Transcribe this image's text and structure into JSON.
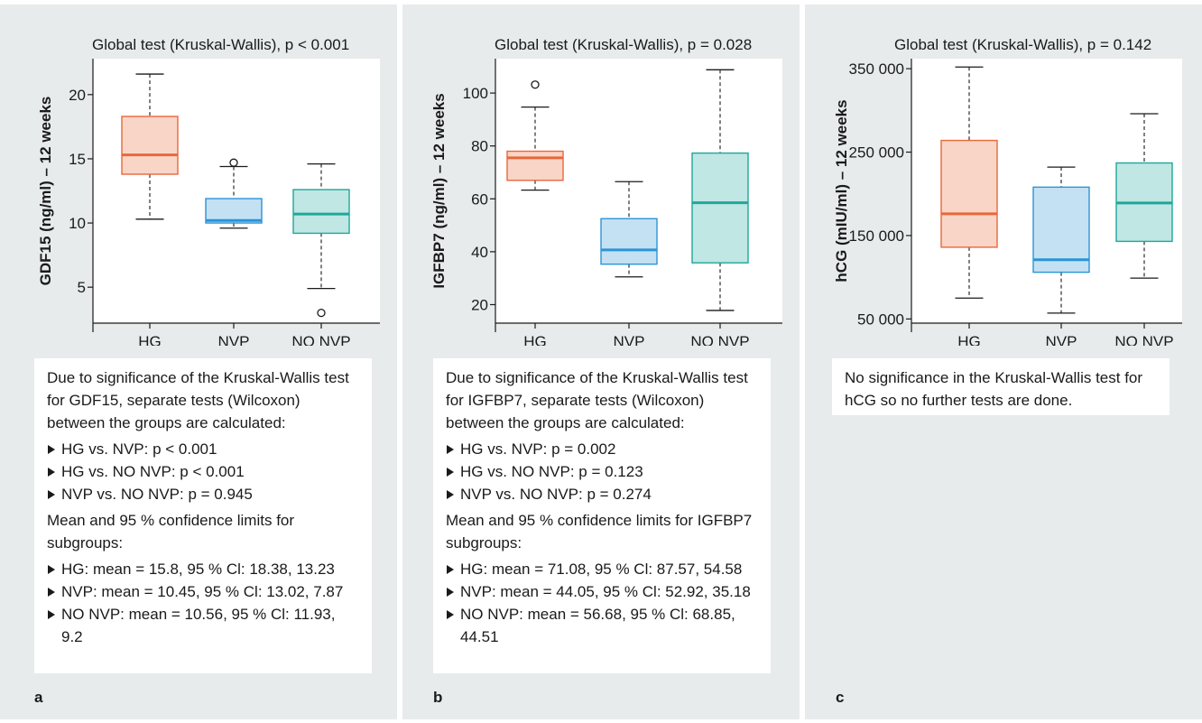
{
  "colors": {
    "HG": "#e8683a",
    "NVP": "#2b94d6",
    "NO NVP": "#1ea89a"
  },
  "panels": [
    {
      "letter": "a",
      "notes": {
        "intro": "Due to significance of the Kruskal-Wallis test for GDF15, separate tests (Wilcoxon) between the groups are calculated:",
        "tests": [
          "HG vs. NVP: p < 0.001",
          "HG vs. NO NVP: p < 0.001",
          "NVP vs. NO NVP: p = 0.945"
        ],
        "ci_intro": "Mean and 95 % confidence limits for subgroups:",
        "ci": [
          "HG: mean = 15.8, 95 % Cl: 18.38, 13.23",
          "NVP: mean = 10.45, 95 % Cl: 13.02, 7.87",
          "NO NVP: mean = 10.56, 95 % Cl: 11.93, 9.2"
        ]
      }
    },
    {
      "letter": "b",
      "notes": {
        "intro": "Due to significance of the Kruskal-Wallis test for IGFBP7, separate tests (Wilcoxon) between the groups are calculated:",
        "tests": [
          "HG vs. NVP: p = 0.002",
          "HG vs. NO NVP: p = 0.123",
          "NVP vs. NO NVP: p = 0.274"
        ],
        "ci_intro": "Mean and 95 % confidence limits for IGFBP7 subgroups:",
        "ci": [
          "HG: mean = 71.08, 95 % Cl: 87.57, 54.58",
          "NVP: mean = 44.05, 95 % Cl: 52.92, 35.18",
          "NO NVP: mean = 56.68, 95 % Cl: 68.85, 44.51"
        ]
      }
    },
    {
      "letter": "c",
      "notes": {
        "intro": "No significance in the Kruskal-Wallis test for hCG so no further tests are done."
      }
    }
  ],
  "chart_data": [
    {
      "type": "box",
      "title": "Global test (Kruskal-Wallis), p < 0.001",
      "ylabel": "GDF15 (ng/ml) – 12 weeks",
      "categories": [
        "HG",
        "NVP",
        "NO NVP"
      ],
      "ylim": [
        2.2,
        22.8
      ],
      "yticks": [
        5,
        10,
        15,
        20
      ],
      "ytick_labels": [
        "5",
        "10",
        "15",
        "20"
      ],
      "boxes": [
        {
          "name": "HG",
          "min": 10.3,
          "q1": 13.8,
          "median": 15.3,
          "q3": 18.3,
          "max": 21.6,
          "outliers": []
        },
        {
          "name": "NVP",
          "min": 9.6,
          "q1": 10.0,
          "median": 10.2,
          "q3": 11.9,
          "max": 14.4,
          "outliers": [
            14.7
          ]
        },
        {
          "name": "NO NVP",
          "min": 4.9,
          "q1": 9.2,
          "median": 10.7,
          "q3": 12.6,
          "max": 14.6,
          "outliers": [
            3.0
          ]
        }
      ]
    },
    {
      "type": "box",
      "title": "Global test (Kruskal-Wallis), p = 0.028",
      "ylabel": "IGFBP7 (ng/ml) – 12 weeks",
      "categories": [
        "HG",
        "NVP",
        "NO NVP"
      ],
      "ylim": [
        13,
        113
      ],
      "yticks": [
        20,
        40,
        60,
        80,
        100
      ],
      "ytick_labels": [
        "20",
        "40",
        "60",
        "80",
        "100"
      ],
      "boxes": [
        {
          "name": "HG",
          "min": 63.3,
          "q1": 67.0,
          "median": 75.5,
          "q3": 78.0,
          "max": 94.7,
          "outliers": [
            103.2
          ]
        },
        {
          "name": "NVP",
          "min": 30.5,
          "q1": 35.3,
          "median": 40.7,
          "q3": 52.5,
          "max": 66.5,
          "outliers": []
        },
        {
          "name": "NO NVP",
          "min": 17.8,
          "q1": 35.8,
          "median": 58.5,
          "q3": 77.3,
          "max": 108.8,
          "outliers": []
        }
      ]
    },
    {
      "type": "box",
      "title": "Global test (Kruskal-Wallis), p = 0.142",
      "ylabel": "hCG (mIU/ml) – 12 weeks",
      "categories": [
        "HG",
        "NVP",
        "NO NVP"
      ],
      "ylim": [
        45000,
        362000
      ],
      "yticks": [
        50000,
        150000,
        250000,
        350000
      ],
      "ytick_labels": [
        "50 000",
        "150 000",
        "250 000",
        "350 000"
      ],
      "boxes": [
        {
          "name": "HG",
          "min": 75000,
          "q1": 136000,
          "median": 176000,
          "q3": 264000,
          "max": 352000,
          "outliers": []
        },
        {
          "name": "NVP",
          "min": 57000,
          "q1": 106000,
          "median": 121000,
          "q3": 208000,
          "max": 232000,
          "outliers": []
        },
        {
          "name": "NO NVP",
          "min": 99000,
          "q1": 143000,
          "median": 189000,
          "q3": 237000,
          "max": 296000,
          "outliers": []
        }
      ]
    }
  ]
}
